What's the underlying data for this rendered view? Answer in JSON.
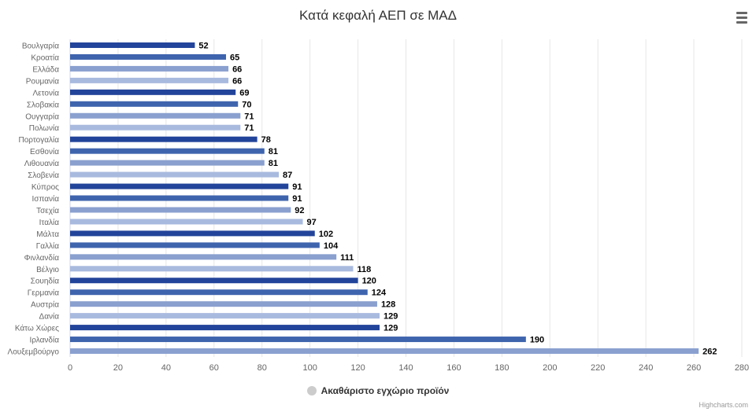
{
  "chart_data": {
    "type": "bar",
    "orientation": "horizontal",
    "title": "Κατά κεφαλή ΑΕΠ σε ΜΑΔ",
    "xlabel": "",
    "ylabel": "",
    "xlim": [
      0,
      280
    ],
    "x_ticks": [
      0,
      20,
      40,
      60,
      80,
      100,
      120,
      140,
      160,
      180,
      200,
      220,
      240,
      260,
      280
    ],
    "grid": true,
    "legend": "bottom-center",
    "categories": [
      "Βουλγαρία",
      "Κροατία",
      "Ελλάδα",
      "Ρουμανία",
      "Λετονία",
      "Σλοβακία",
      "Ουγγαρία",
      "Πολωνία",
      "Πορτογαλία",
      "Εσθονία",
      "Λιθουανία",
      "Σλοβενία",
      "Κύπρος",
      "Ισπανία",
      "Τσεχία",
      "Ιταλία",
      "Μάλτα",
      "Γαλλία",
      "Φινλανδία",
      "Βέλγιο",
      "Σουηδία",
      "Γερμανία",
      "Αυστρία",
      "Δανία",
      "Κάτω Χώρες",
      "Ιρλανδία",
      "Λουξεμβούργο"
    ],
    "series": [
      {
        "name": "Ακαθάριστο εγχώριο προϊόν",
        "values": [
          52,
          65,
          66,
          66,
          69,
          70,
          71,
          71,
          78,
          81,
          81,
          87,
          91,
          91,
          92,
          97,
          102,
          104,
          111,
          118,
          120,
          124,
          128,
          129,
          129,
          190,
          262
        ]
      }
    ],
    "bar_colors": [
      "#22449a",
      "#3f64ae",
      "#8aa0cf",
      "#a9badf"
    ]
  },
  "legend": {
    "label": "Ακαθάριστο εγχώριο προϊόν",
    "marker_color": "#cccccc"
  },
  "credits": "Highcharts.com",
  "menu": {
    "icon": "hamburger-menu-icon"
  }
}
